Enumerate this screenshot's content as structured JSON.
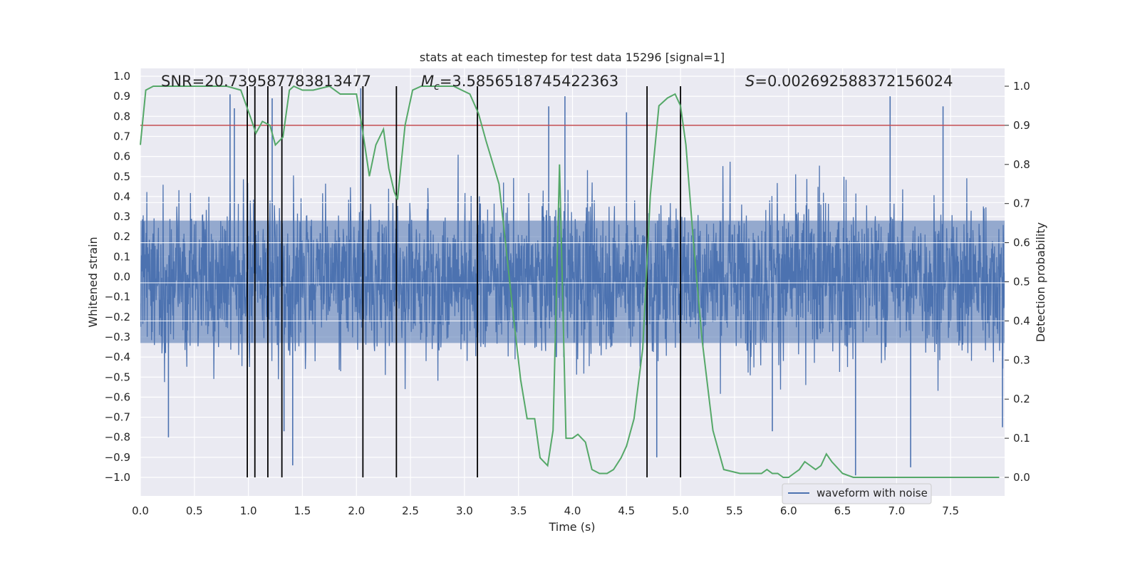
{
  "chart_data": {
    "type": "line",
    "title": "stats at each timestep for test data 15296 [signal=1]",
    "xlabel": "Time (s)",
    "ylabel": "Whitened strain",
    "y2label": "Detection probability",
    "xlim": [
      0.0,
      8.0
    ],
    "ylim": [
      -1.1,
      1.05
    ],
    "y2lim": [
      -0.05,
      1.03
    ],
    "x_ticks": [
      "0.0",
      "0.5",
      "1.0",
      "1.5",
      "2.0",
      "2.5",
      "3.0",
      "3.5",
      "4.0",
      "4.5",
      "5.0",
      "5.5",
      "6.0",
      "6.5",
      "7.0",
      "7.5"
    ],
    "y_ticks": [
      "1.0",
      "0.9",
      "0.8",
      "0.7",
      "0.6",
      "0.5",
      "0.4",
      "0.3",
      "0.2",
      "0.1",
      "0.0",
      "−0.1",
      "−0.2",
      "−0.3",
      "−0.4",
      "−0.5",
      "−0.6",
      "−0.7",
      "−0.8",
      "−0.9",
      "−1.0"
    ],
    "y2_ticks": [
      "1.0",
      "0.9",
      "0.8",
      "0.7",
      "0.6",
      "0.5",
      "0.4",
      "0.3",
      "0.2",
      "0.1",
      "0.0"
    ],
    "grid": true,
    "annotations": {
      "snr": "SNR=20.739587783813477",
      "mc_symbol": "M",
      "mc_sub": "c",
      "mc_value": "=3.5856518745422363",
      "s_symbol": "S",
      "s_value": "=0.002692588372156024"
    },
    "legend": {
      "label": "waveform with noise",
      "placement": "lower-right"
    },
    "threshold": {
      "y2": 0.9,
      "color": "#c44e52"
    },
    "vlines_x": [
      0.99,
      1.06,
      1.18,
      1.31,
      2.06,
      2.37,
      3.12,
      4.69,
      5.0
    ],
    "series": [
      {
        "name": "waveform with noise",
        "kind": "strain",
        "color": "#4c72b0",
        "noise_amplitude": 0.42,
        "spikes": [
          {
            "x": 0.26,
            "y": -0.8
          },
          {
            "x": 0.83,
            "y": 0.91
          },
          {
            "x": 0.87,
            "y": 0.84
          },
          {
            "x": 1.22,
            "y": 0.89
          },
          {
            "x": 1.41,
            "y": -0.94
          },
          {
            "x": 2.04,
            "y": 0.94
          },
          {
            "x": 3.78,
            "y": 0.85
          },
          {
            "x": 3.93,
            "y": 0.9
          },
          {
            "x": 4.5,
            "y": 0.82
          },
          {
            "x": 4.78,
            "y": -0.9
          },
          {
            "x": 6.62,
            "y": -0.99
          },
          {
            "x": 6.94,
            "y": 0.9
          },
          {
            "x": 7.13,
            "y": -0.95
          },
          {
            "x": 7.43,
            "y": 0.85
          },
          {
            "x": 7.98,
            "y": -0.75
          },
          {
            "x": 5.85,
            "y": -0.77
          },
          {
            "x": 1.33,
            "y": -0.77
          }
        ]
      },
      {
        "name": "",
        "kind": "probability",
        "color": "#55a868",
        "x": [
          0.0,
          0.05,
          0.12,
          0.4,
          0.8,
          0.93,
          1.02,
          1.07,
          1.13,
          1.2,
          1.25,
          1.32,
          1.38,
          1.42,
          1.5,
          1.6,
          1.75,
          1.85,
          1.92,
          2.0,
          2.05,
          2.12,
          2.18,
          2.25,
          2.3,
          2.35,
          2.38,
          2.45,
          2.52,
          2.6,
          2.9,
          3.05,
          3.13,
          3.2,
          3.32,
          3.38,
          3.45,
          3.52,
          3.58,
          3.65,
          3.7,
          3.77,
          3.82,
          3.88,
          3.94,
          4.0,
          4.05,
          4.12,
          4.18,
          4.25,
          4.32,
          4.38,
          4.45,
          4.5,
          4.57,
          4.65,
          4.72,
          4.8,
          4.88,
          4.95,
          5.0,
          5.05,
          5.12,
          5.2,
          5.3,
          5.4,
          5.55,
          5.7,
          5.75,
          5.8,
          5.85,
          5.9,
          5.95,
          6.0,
          6.05,
          6.1,
          6.15,
          6.2,
          6.25,
          6.3,
          6.35,
          6.4,
          6.5,
          6.6,
          7.0,
          7.5,
          7.95
        ],
        "y": [
          0.85,
          0.99,
          1.0,
          1.0,
          1.0,
          0.99,
          0.92,
          0.88,
          0.91,
          0.9,
          0.85,
          0.87,
          0.99,
          1.0,
          0.99,
          0.99,
          1.0,
          0.98,
          0.98,
          0.98,
          0.9,
          0.77,
          0.85,
          0.89,
          0.79,
          0.73,
          0.71,
          0.9,
          0.99,
          1.0,
          1.0,
          0.98,
          0.93,
          0.86,
          0.75,
          0.6,
          0.42,
          0.25,
          0.15,
          0.15,
          0.05,
          0.03,
          0.12,
          0.8,
          0.1,
          0.1,
          0.11,
          0.09,
          0.02,
          0.01,
          0.01,
          0.02,
          0.05,
          0.08,
          0.15,
          0.33,
          0.72,
          0.95,
          0.97,
          0.98,
          0.95,
          0.85,
          0.6,
          0.35,
          0.12,
          0.02,
          0.01,
          0.01,
          0.01,
          0.02,
          0.01,
          0.01,
          0.0,
          0.0,
          0.01,
          0.02,
          0.04,
          0.03,
          0.02,
          0.03,
          0.06,
          0.04,
          0.01,
          0.0,
          0.0,
          0.0,
          0.0
        ]
      }
    ]
  }
}
